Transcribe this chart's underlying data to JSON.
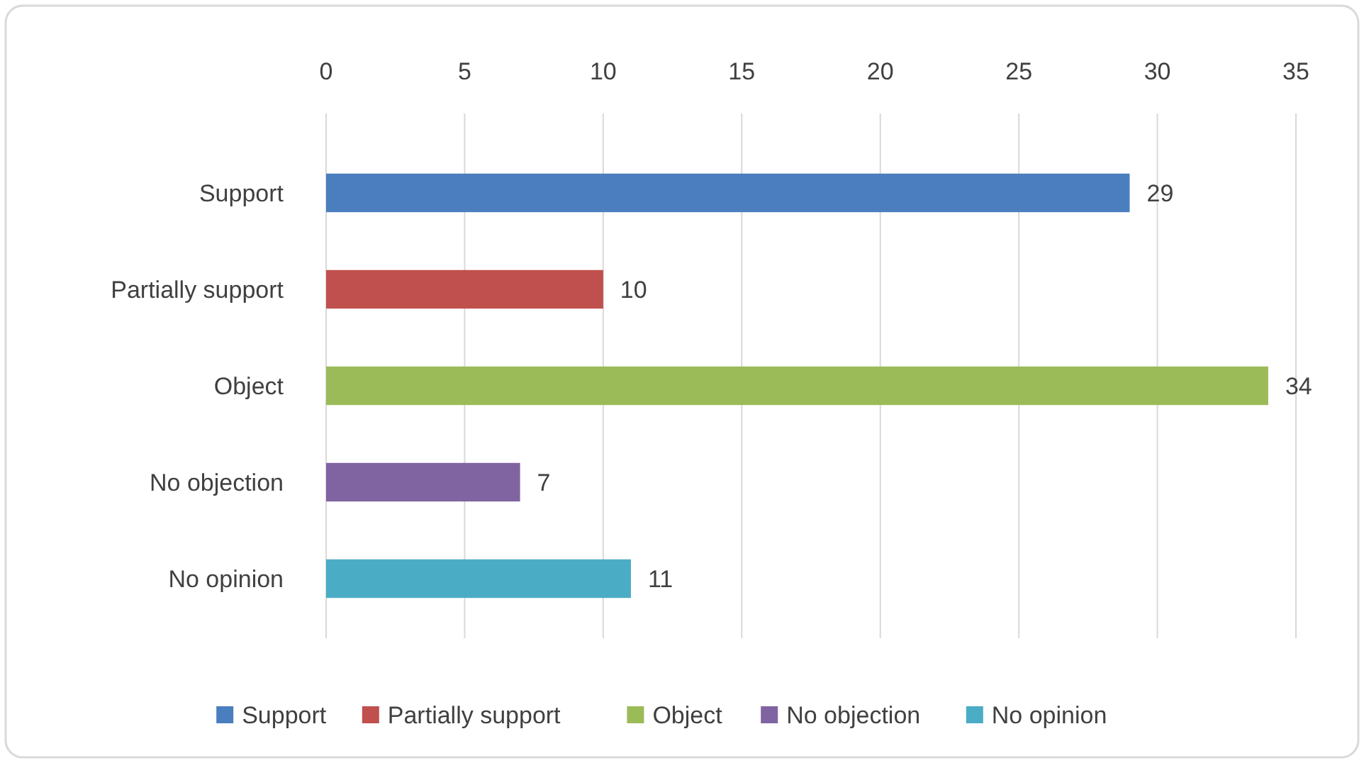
{
  "chart_data": {
    "type": "bar",
    "orientation": "horizontal",
    "categories": [
      "Support",
      "Partially support",
      "Object",
      "No objection",
      "No opinion"
    ],
    "series": [
      {
        "name": "Support",
        "color": "#4a7ebf",
        "values": [
          29,
          null,
          null,
          null,
          null
        ]
      },
      {
        "name": "Partially support",
        "color": "#c0504d",
        "values": [
          null,
          10,
          null,
          null,
          null
        ]
      },
      {
        "name": "Object",
        "color": "#9bbb59",
        "values": [
          null,
          null,
          34,
          null,
          null
        ]
      },
      {
        "name": "No objection",
        "color": "#8064a2",
        "values": [
          null,
          null,
          null,
          7,
          null
        ]
      },
      {
        "name": "No opinion",
        "color": "#4bacc6",
        "values": [
          null,
          null,
          null,
          null,
          11
        ]
      }
    ],
    "xlim": [
      0,
      35
    ],
    "xticks": [
      0,
      5,
      10,
      15,
      20,
      25,
      30,
      35
    ],
    "grid": "x",
    "data_labels": true,
    "legend": "bottom"
  }
}
